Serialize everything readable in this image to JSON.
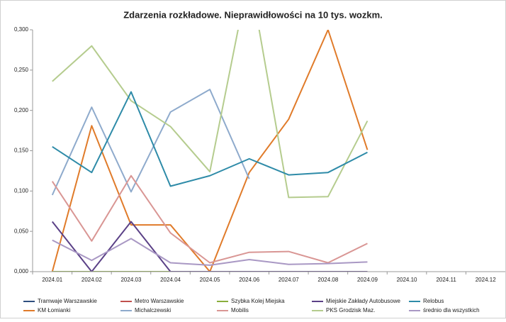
{
  "chart_data": {
    "type": "line",
    "title": "Zdarzenia rozkładowe. Nieprawidłowości na 10 tys. wozkm.",
    "categories": [
      "2024.01",
      "2024.02",
      "2024.03",
      "2024.04",
      "2024.05",
      "2024.06",
      "2024.07",
      "2024.08",
      "2024.09",
      "2024.10",
      "2024.11",
      "2024.12"
    ],
    "ylim": [
      0,
      0.3
    ],
    "yticks": [
      {
        "value": 0,
        "label": "0,000"
      },
      {
        "value": 0.05,
        "label": "0,050"
      },
      {
        "value": 0.1,
        "label": "0,100"
      },
      {
        "value": 0.15,
        "label": "0,150"
      },
      {
        "value": 0.2,
        "label": "0,200"
      },
      {
        "value": 0.25,
        "label": "0,250"
      },
      {
        "value": 0.3,
        "label": "0,300"
      }
    ],
    "grid": false,
    "legend": "bottom",
    "series": [
      {
        "name": "Tramwaje Warszawskie",
        "color": "#2f4f7f",
        "values": [
          0,
          0,
          0,
          0,
          0,
          0,
          0,
          0,
          0,
          null,
          null,
          null
        ]
      },
      {
        "name": "KM Łomianki",
        "color": "#e07b2a",
        "values": [
          0,
          0.181,
          0.058,
          0.058,
          0,
          0.123,
          0.189,
          0.3,
          0.151,
          null,
          null,
          null
        ]
      },
      {
        "name": "Metro Warszawskie",
        "color": "#c0504d",
        "values": [
          0,
          0,
          0,
          0,
          0,
          0,
          0,
          0,
          0,
          null,
          null,
          null
        ]
      },
      {
        "name": "Michalczewski",
        "color": "#8eaacc",
        "values": [
          0.095,
          0.204,
          0.099,
          0.198,
          0.226,
          0.115,
          null,
          null,
          null,
          null,
          null,
          null
        ]
      },
      {
        "name": "Szybka Kolej Miejska",
        "color": "#8aae3c",
        "values": [
          0,
          0,
          0,
          0,
          null,
          null,
          null,
          null,
          null,
          null,
          null,
          null
        ]
      },
      {
        "name": "Mobilis",
        "color": "#d99694",
        "values": [
          0.112,
          0.038,
          0.119,
          0.048,
          0.011,
          0.024,
          0.025,
          0.011,
          0.035,
          null,
          null,
          null
        ]
      },
      {
        "name": "Miejskie Zakłady Autobusowe",
        "color": "#5b4187",
        "values": [
          0.062,
          0,
          0.062,
          0,
          0,
          0,
          0,
          0,
          0,
          null,
          null,
          null
        ]
      },
      {
        "name": "PKS Grodzisk Maz.",
        "color": "#b5cc8e",
        "values": [
          0.236,
          0.28,
          0.212,
          0.18,
          0.124,
          0.37,
          0.092,
          0.093,
          0.187,
          null,
          null,
          null
        ]
      },
      {
        "name": "Relobus",
        "color": "#2e8ba8",
        "values": [
          0.155,
          0.123,
          0.223,
          0.106,
          0.119,
          0.14,
          0.12,
          0.123,
          0.148,
          null,
          null,
          null
        ]
      },
      {
        "name": "średnio dla wszystkich",
        "color": "#a998c4",
        "values": [
          0.039,
          0.014,
          0.041,
          0.011,
          0.008,
          0.015,
          0.009,
          0.01,
          0.012,
          null,
          null,
          null
        ]
      }
    ]
  }
}
